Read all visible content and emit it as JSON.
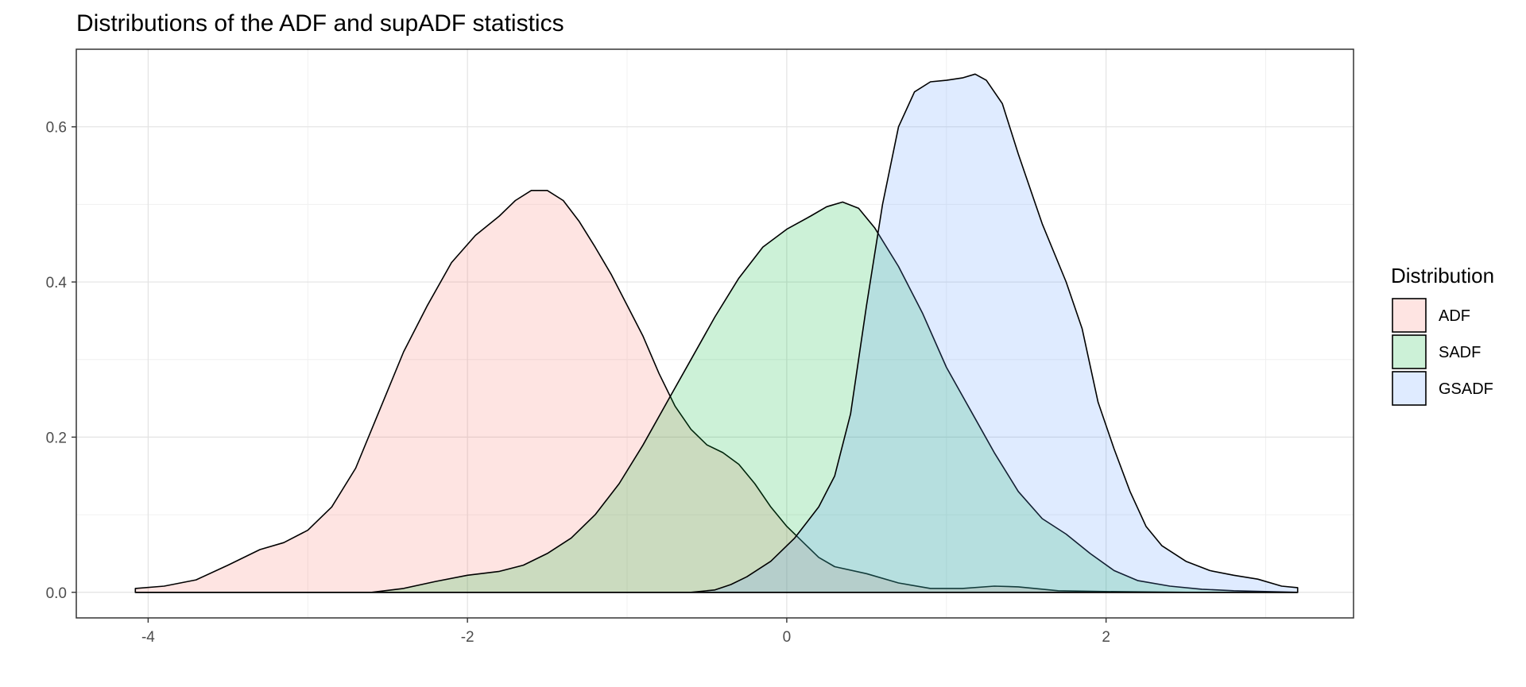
{
  "chart_data": {
    "type": "area",
    "title": "Distributions of the ADF and supADF statistics",
    "xlabel": "",
    "ylabel": "",
    "xlim": [
      -4.45,
      3.55
    ],
    "ylim": [
      -0.033,
      0.7
    ],
    "x_ticks": [
      -4,
      -2,
      0,
      2
    ],
    "x_tick_labels": [
      "-4",
      "-2",
      "0",
      "2"
    ],
    "y_ticks": [
      0.0,
      0.2,
      0.4,
      0.6
    ],
    "y_tick_labels": [
      "0.0",
      "0.2",
      "0.4",
      "0.6"
    ],
    "grid": true,
    "legend": {
      "title": "Distribution",
      "position": "right"
    },
    "series": [
      {
        "name": "ADF",
        "fill": "#f8766d",
        "points": [
          [
            -4.08,
            0.005
          ],
          [
            -3.9,
            0.008
          ],
          [
            -3.7,
            0.016
          ],
          [
            -3.5,
            0.035
          ],
          [
            -3.3,
            0.055
          ],
          [
            -3.15,
            0.064
          ],
          [
            -3.0,
            0.08
          ],
          [
            -2.85,
            0.11
          ],
          [
            -2.7,
            0.16
          ],
          [
            -2.55,
            0.235
          ],
          [
            -2.4,
            0.31
          ],
          [
            -2.25,
            0.37
          ],
          [
            -2.1,
            0.425
          ],
          [
            -1.95,
            0.46
          ],
          [
            -1.8,
            0.485
          ],
          [
            -1.7,
            0.505
          ],
          [
            -1.6,
            0.518
          ],
          [
            -1.5,
            0.518
          ],
          [
            -1.4,
            0.505
          ],
          [
            -1.3,
            0.478
          ],
          [
            -1.2,
            0.445
          ],
          [
            -1.1,
            0.41
          ],
          [
            -1.0,
            0.37
          ],
          [
            -0.9,
            0.33
          ],
          [
            -0.8,
            0.282
          ],
          [
            -0.7,
            0.24
          ],
          [
            -0.6,
            0.21
          ],
          [
            -0.5,
            0.19
          ],
          [
            -0.4,
            0.18
          ],
          [
            -0.3,
            0.165
          ],
          [
            -0.2,
            0.14
          ],
          [
            -0.1,
            0.11
          ],
          [
            0.0,
            0.085
          ],
          [
            0.1,
            0.065
          ],
          [
            0.2,
            0.045
          ],
          [
            0.3,
            0.033
          ],
          [
            0.5,
            0.024
          ],
          [
            0.7,
            0.012
          ],
          [
            0.9,
            0.005
          ],
          [
            1.1,
            0.005
          ],
          [
            1.3,
            0.008
          ],
          [
            1.45,
            0.007
          ],
          [
            1.7,
            0.002
          ],
          [
            2.0,
            0.001
          ],
          [
            2.5,
            0.0
          ],
          [
            3.2,
            0.0
          ]
        ]
      },
      {
        "name": "SADF",
        "fill": "#00ba38",
        "points": [
          [
            -4.08,
            0.0
          ],
          [
            -3.0,
            0.0
          ],
          [
            -2.6,
            0.0
          ],
          [
            -2.4,
            0.005
          ],
          [
            -2.2,
            0.014
          ],
          [
            -2.0,
            0.022
          ],
          [
            -1.8,
            0.027
          ],
          [
            -1.65,
            0.035
          ],
          [
            -1.5,
            0.05
          ],
          [
            -1.35,
            0.07
          ],
          [
            -1.2,
            0.1
          ],
          [
            -1.05,
            0.14
          ],
          [
            -0.9,
            0.19
          ],
          [
            -0.75,
            0.245
          ],
          [
            -0.6,
            0.3
          ],
          [
            -0.45,
            0.355
          ],
          [
            -0.3,
            0.405
          ],
          [
            -0.15,
            0.445
          ],
          [
            0.0,
            0.468
          ],
          [
            0.15,
            0.485
          ],
          [
            0.25,
            0.497
          ],
          [
            0.35,
            0.503
          ],
          [
            0.45,
            0.495
          ],
          [
            0.55,
            0.47
          ],
          [
            0.7,
            0.42
          ],
          [
            0.85,
            0.36
          ],
          [
            1.0,
            0.29
          ],
          [
            1.15,
            0.235
          ],
          [
            1.3,
            0.18
          ],
          [
            1.45,
            0.13
          ],
          [
            1.6,
            0.095
          ],
          [
            1.75,
            0.075
          ],
          [
            1.9,
            0.05
          ],
          [
            2.05,
            0.028
          ],
          [
            2.2,
            0.015
          ],
          [
            2.4,
            0.008
          ],
          [
            2.6,
            0.004
          ],
          [
            2.8,
            0.002
          ],
          [
            3.0,
            0.001
          ],
          [
            3.2,
            0.0
          ]
        ]
      },
      {
        "name": "GSADF",
        "fill": "#619cff",
        "points": [
          [
            -4.08,
            0.0
          ],
          [
            -1.0,
            0.0
          ],
          [
            -0.6,
            0.0
          ],
          [
            -0.45,
            0.003
          ],
          [
            -0.35,
            0.01
          ],
          [
            -0.25,
            0.02
          ],
          [
            -0.1,
            0.04
          ],
          [
            0.05,
            0.07
          ],
          [
            0.2,
            0.11
          ],
          [
            0.3,
            0.15
          ],
          [
            0.4,
            0.23
          ],
          [
            0.5,
            0.37
          ],
          [
            0.6,
            0.5
          ],
          [
            0.7,
            0.6
          ],
          [
            0.8,
            0.645
          ],
          [
            0.9,
            0.658
          ],
          [
            1.0,
            0.66
          ],
          [
            1.1,
            0.663
          ],
          [
            1.18,
            0.668
          ],
          [
            1.25,
            0.66
          ],
          [
            1.35,
            0.63
          ],
          [
            1.45,
            0.565
          ],
          [
            1.6,
            0.475
          ],
          [
            1.75,
            0.4
          ],
          [
            1.85,
            0.34
          ],
          [
            1.95,
            0.245
          ],
          [
            2.05,
            0.185
          ],
          [
            2.15,
            0.13
          ],
          [
            2.25,
            0.085
          ],
          [
            2.35,
            0.06
          ],
          [
            2.5,
            0.04
          ],
          [
            2.65,
            0.028
          ],
          [
            2.8,
            0.022
          ],
          [
            2.95,
            0.017
          ],
          [
            3.1,
            0.008
          ],
          [
            3.2,
            0.006
          ]
        ]
      }
    ]
  }
}
